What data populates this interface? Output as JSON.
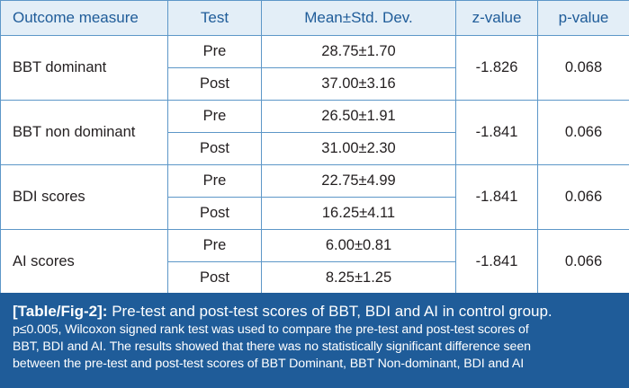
{
  "table": {
    "headers": {
      "measure": "Outcome measure",
      "test": "Test",
      "mean": "Mean±Std. Dev.",
      "z": "z-value",
      "p": "p-value"
    },
    "rows": [
      {
        "measure": "BBT dominant",
        "z": "-1.826",
        "p": "0.068",
        "pre": {
          "test": "Pre",
          "mean": "28.75±1.70"
        },
        "post": {
          "test": "Post",
          "mean": "37.00±3.16"
        }
      },
      {
        "measure": "BBT non dominant",
        "z": "-1.841",
        "p": "0.066",
        "pre": {
          "test": "Pre",
          "mean": "26.50±1.91"
        },
        "post": {
          "test": "Post",
          "mean": "31.00±2.30"
        }
      },
      {
        "measure": "BDI scores",
        "z": "-1.841",
        "p": "0.066",
        "pre": {
          "test": "Pre",
          "mean": "22.75±4.99"
        },
        "post": {
          "test": "Post",
          "mean": "16.25±4.11"
        }
      },
      {
        "measure": "AI scores",
        "z": "-1.841",
        "p": "0.066",
        "pre": {
          "test": "Pre",
          "mean": "6.00±0.81"
        },
        "post": {
          "test": "Post",
          "mean": "8.25±1.25"
        }
      }
    ]
  },
  "caption": {
    "label": "[Table/Fig-2]:",
    "title": "Pre-test and post-test scores of BBT, BDI and AI in control group.",
    "lines": [
      "p≤0.005, Wilcoxon signed rank test was used to compare the pre-test and post-test scores of",
      "BBT, BDI and AI. The results showed that there was no statistically significant difference seen",
      "between the pre-test and post-test scores of BBT Dominant, BBT Non-dominant, BDI and AI"
    ]
  }
}
